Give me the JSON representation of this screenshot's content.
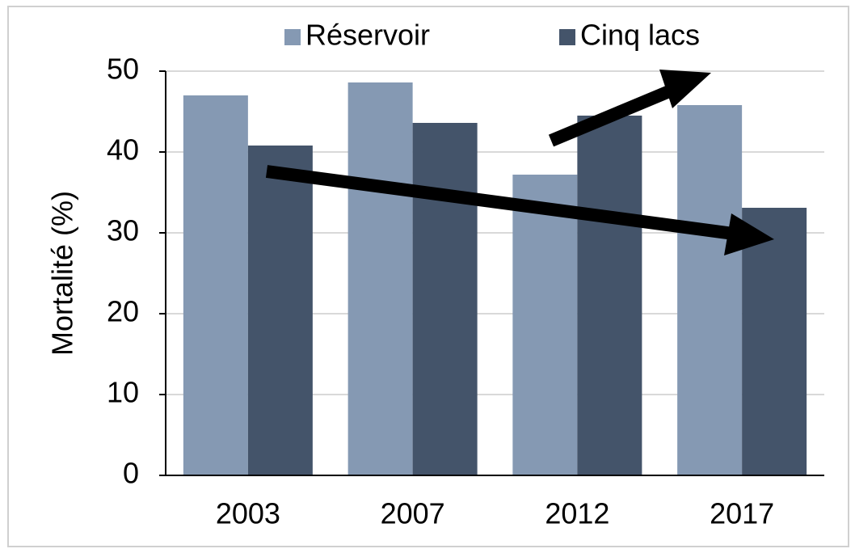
{
  "chart_data": {
    "type": "bar",
    "categories": [
      "2003",
      "2007",
      "2012",
      "2017"
    ],
    "series": [
      {
        "name": "Réservoir",
        "color": "#8599b3",
        "values": [
          47,
          48.6,
          37.2,
          45.8
        ]
      },
      {
        "name": "Cinq lacs",
        "color": "#44546a",
        "values": [
          40.8,
          43.6,
          44.5,
          33.1
        ]
      }
    ],
    "ylabel": "Mortalité (%)",
    "ylim": [
      0,
      50
    ],
    "yticks": [
      0,
      10,
      20,
      30,
      40,
      50
    ],
    "grid": true,
    "legend": "top"
  }
}
